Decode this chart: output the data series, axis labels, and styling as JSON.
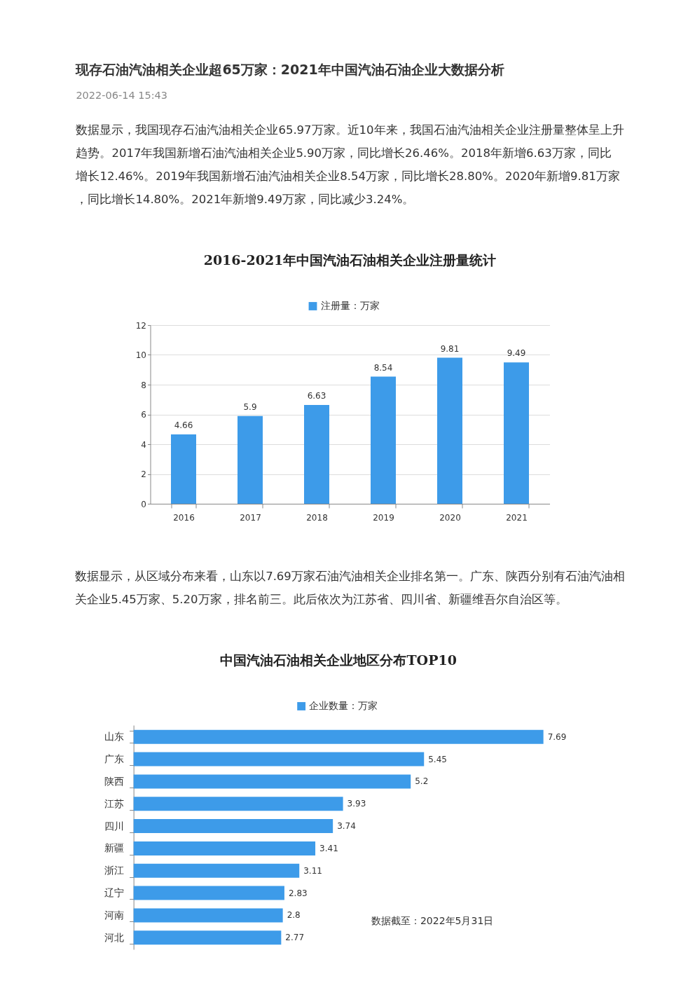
{
  "chart_data": [
    {
      "type": "other",
      "title": "现存石油汽油相关企业超65万家：2021年中国汽油石油企业大数据分析",
      "subtitle": "2022-06-14 15:43",
      "annotations": [
        "数据显示，我国现存石油汽油相关企业65.97万家。近10年来，我国石油汽油相关企业注册量整体呈上升趋势。2017年我国新增石油汽油相关企业5.90万家，同比增长26.46%。2018年新增6.63万家，同比增长12.46%。2019年我国新增石油汽油相关企业8.54万家，同比增长28.80%。2020年新增9.81万家，同比增长14.80%。2021年新增9.49万家，同比减少3.24%。"
      ]
    },
    {
      "type": "bar",
      "title": "2016-2021年中国汽油石油相关企业注册量统计",
      "categories": [
        "2016",
        "2017",
        "2018",
        "2019",
        "2020",
        "2021"
      ],
      "series": [
        {
          "name": "注册量：万家",
          "color": "#3d9be9",
          "values": [
            4.66,
            5.9,
            6.63,
            8.54,
            9.81,
            9.49
          ]
        }
      ],
      "ylim": [
        0,
        12
      ],
      "yticks": [
        0,
        2,
        4,
        6,
        8,
        10,
        12
      ],
      "grid": "y",
      "legend": "top",
      "data_labels": true
    },
    {
      "type": "other",
      "annotations": [
        "数据显示，从区域分布来看，山东以7.69万家石油汽油相关企业排名第一。广东、陕西分别有石油汽油相关企业5.45万家、5.20万家，排名前三。此后依次为江苏省、四川省、新疆维吾尔自治区等。"
      ]
    },
    {
      "type": "bar",
      "orientation": "horizontal",
      "title": "中国汽油石油相关企业地区分布TOP10",
      "categories": [
        "山东",
        "广东",
        "陕西",
        "江苏",
        "四川",
        "新疆",
        "浙江",
        "辽宁",
        "河南",
        "河北"
      ],
      "series": [
        {
          "name": "企业数量：万家",
          "color": "#3d9be9",
          "values": [
            7.69,
            5.45,
            5.2,
            3.93,
            3.74,
            3.41,
            3.11,
            2.83,
            2.8,
            2.77
          ]
        }
      ],
      "tick_labels": "y",
      "legend": "top",
      "data_labels": true,
      "annotations": [
        "数据截至：2022年5月31日"
      ]
    }
  ]
}
